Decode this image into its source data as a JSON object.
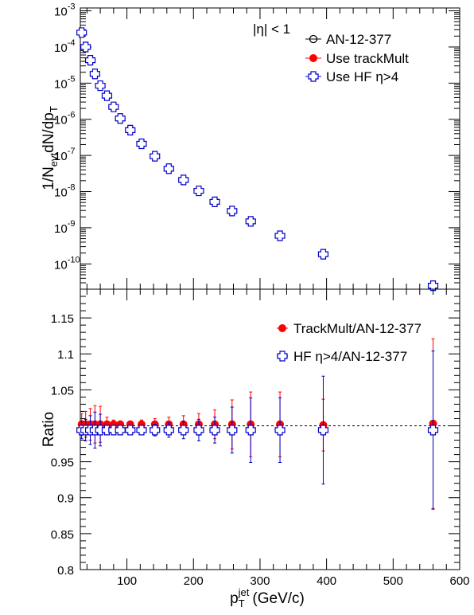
{
  "chart_data": [
    {
      "type": "scatter",
      "panel": "spectrum",
      "annotation": "|η| < 1",
      "ylabel": "1/N_evt dN/dp_T",
      "yscale": "log",
      "ylim": [
        2e-11,
        0.0012
      ],
      "xlim": [
        30,
        600
      ],
      "ytick_labels": [
        "10^-10",
        "10^-9",
        "10^-8",
        "10^-7",
        "10^-6",
        "10^-5",
        "10^-4",
        "10^-3"
      ],
      "x": [
        32,
        38,
        45,
        52,
        60,
        70,
        80,
        90,
        105,
        122,
        142,
        163,
        185,
        208,
        232,
        258,
        286,
        330,
        395,
        560
      ],
      "series": [
        {
          "name": "AN-12-377",
          "marker": "open-circle",
          "color": "#000000",
          "values": [
            0.00025,
            0.0001,
            4.3e-05,
            1.8e-05,
            8.5e-06,
            4.5e-06,
            2.2e-06,
            1.05e-06,
            5e-07,
            2.1e-07,
            9.5e-08,
            4.3e-08,
            2.1e-08,
            1.05e-08,
            5.2e-09,
            2.9e-09,
            1.5e-09,
            6e-10,
            1.85e-10,
            2.5e-11
          ]
        },
        {
          "name": "Use trackMult",
          "marker": "filled-circle",
          "color": "#ff0000",
          "values": [
            0.00025,
            0.0001,
            4.3e-05,
            1.8e-05,
            8.5e-06,
            4.5e-06,
            2.2e-06,
            1.05e-06,
            5e-07,
            2.1e-07,
            9.5e-08,
            4.3e-08,
            2.1e-08,
            1.05e-08,
            5.2e-09,
            2.9e-09,
            1.5e-09,
            6e-10,
            1.85e-10,
            2.5e-11
          ]
        },
        {
          "name": "Use HF η>4",
          "marker": "open-cross",
          "color": "#0000cc",
          "values": [
            0.00025,
            0.0001,
            4.3e-05,
            1.8e-05,
            8.5e-06,
            4.5e-06,
            2.2e-06,
            1.05e-06,
            5e-07,
            2.1e-07,
            9.5e-08,
            4.3e-08,
            2.1e-08,
            1.05e-08,
            5.2e-09,
            2.9e-09,
            1.5e-09,
            6e-10,
            1.85e-10,
            2.5e-11
          ]
        }
      ]
    },
    {
      "type": "scatter",
      "panel": "ratio",
      "xlabel": "p_T^jet (GeV/c)",
      "ylabel": "Ratio",
      "xlim": [
        30,
        600
      ],
      "ylim": [
        0.8,
        1.19
      ],
      "xticks": [
        100,
        200,
        300,
        400,
        500,
        600
      ],
      "yticks": [
        0.8,
        0.85,
        0.9,
        0.95,
        1.05,
        1.1,
        1.15
      ],
      "ytick_labels": [
        "0.8",
        "0.85",
        "0.9",
        "0.95",
        "1.05",
        "1.1",
        "1.15"
      ],
      "reference_line": 1.0,
      "x": [
        32,
        38,
        45,
        52,
        60,
        70,
        80,
        90,
        105,
        122,
        142,
        163,
        185,
        208,
        232,
        258,
        286,
        330,
        395,
        560
      ],
      "series": [
        {
          "name": "TrackMult/AN-12-377",
          "marker": "filled-circle",
          "color": "#ff0000",
          "values": [
            1.002,
            1.002,
            1.002,
            1.002,
            1.002,
            1.002,
            1.002,
            1.002,
            1.002,
            1.002,
            1.002,
            1.002,
            1.002,
            1.002,
            1.002,
            1.002,
            1.002,
            1.002,
            1.001,
            1.003
          ],
          "errors": [
            0.015,
            0.018,
            0.022,
            0.026,
            0.025,
            0.01,
            0.006,
            0.004,
            0.004,
            0.006,
            0.008,
            0.01,
            0.012,
            0.015,
            0.02,
            0.034,
            0.045,
            0.045,
            0.036,
            0.118
          ]
        },
        {
          "name": "HF η>4/AN-12-377",
          "marker": "open-cross",
          "color": "#0000cc",
          "values": [
            0.994,
            0.994,
            0.994,
            0.994,
            0.994,
            0.994,
            0.994,
            0.994,
            0.994,
            0.994,
            0.994,
            0.994,
            0.994,
            0.994,
            0.994,
            0.994,
            0.994,
            0.994,
            0.994,
            0.994
          ],
          "errors": [
            0.012,
            0.015,
            0.02,
            0.025,
            0.022,
            0.006,
            0.004,
            0.003,
            0.004,
            0.006,
            0.008,
            0.01,
            0.012,
            0.015,
            0.018,
            0.032,
            0.045,
            0.045,
            0.075,
            0.11
          ]
        }
      ]
    }
  ]
}
